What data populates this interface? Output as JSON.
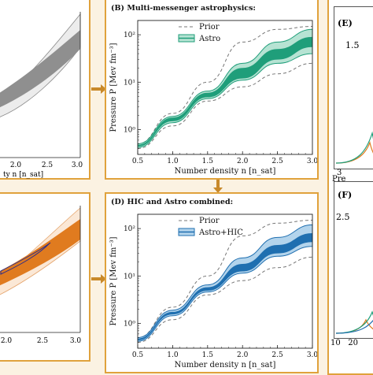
{
  "colors": {
    "background": "#fbf2e2",
    "panel_border": "#e0a23c",
    "arrow": "#c8892a",
    "astro_teal": "#1f9e7a",
    "astro_teal_light": "#b6e3d3",
    "astrohic_blue": "#1f6fb0",
    "astrohic_blue_light": "#b3d4ec",
    "hic_orange": "#e07b1f",
    "hic_orange_light": "#f6d2ad",
    "prior_gray": "#777777",
    "prior_fill": "#e9e9e9",
    "prior_dark": "#8a8a8a"
  },
  "panels": {
    "A": {
      "xtick_labels": [
        "2.0",
        "2.5",
        "3.0"
      ],
      "xlabel_fragment": "ty n [n_sat]"
    },
    "B": {
      "title": "(B) Multi-messenger astrophysics:",
      "legend": [
        "Prior",
        "Astro"
      ],
      "ylabel": "Pressure P [Mev fm⁻³]",
      "xlabel": "Number density n [n_sat]"
    },
    "C": {
      "xtick_labels": [
        "2.0",
        "2.5",
        "3.0"
      ]
    },
    "D": {
      "title": "(D) HIC and Astro combined:",
      "legend": [
        "Prior",
        "Astro+HIC"
      ],
      "ylabel": "Pressure P [Mev fm⁻³]",
      "xlabel": "Number density n [n_sat]"
    },
    "E": {
      "title": "(E)",
      "label_fragment": "1.5",
      "xtick_fragment": "3",
      "xlabel_fragment": "Pre"
    },
    "F": {
      "title": "(F)",
      "label_fragment": "2.5",
      "xtick_fragment": "10   20"
    }
  },
  "chart_data": [
    {
      "panel": "B",
      "type": "area",
      "title": "(B) Multi-messenger astrophysics:",
      "xlabel": "Number density n [n_sat]",
      "ylabel": "Pressure P [Mev fm⁻³]",
      "yscale": "log",
      "xlim": [
        0.5,
        3.0
      ],
      "ylim": [
        0.3,
        200
      ],
      "x_ticks": [
        "0.5",
        "1.0",
        "1.5",
        "2.0",
        "2.5",
        "3.0"
      ],
      "y_ticks": [
        "10⁰",
        "10¹",
        "10²"
      ],
      "legend": [
        "Prior",
        "Astro"
      ],
      "legend_position": "top-right",
      "x": [
        0.5,
        1.0,
        1.5,
        2.0,
        2.5,
        3.0
      ],
      "series": [
        {
          "name": "Prior",
          "upper": [
            0.5,
            2.2,
            10.0,
            70.0,
            130.0,
            150.0
          ],
          "lower": [
            0.4,
            1.2,
            4.0,
            8.0,
            15.0,
            25.0
          ]
        },
        {
          "name": "Astro",
          "upper_outer": [
            0.5,
            1.9,
            6.5,
            25.0,
            70.0,
            130.0
          ],
          "lower_outer": [
            0.42,
            1.4,
            4.5,
            11.0,
            25.0,
            40.0
          ],
          "upper_inner": [
            0.48,
            1.8,
            6.0,
            20.0,
            50.0,
            90.0
          ],
          "lower_inner": [
            0.44,
            1.5,
            4.8,
            12.0,
            30.0,
            55.0
          ]
        }
      ]
    },
    {
      "panel": "D",
      "type": "area",
      "title": "(D) HIC and Astro combined:",
      "xlabel": "Number density n [n_sat]",
      "ylabel": "Pressure P [Mev fm⁻³]",
      "yscale": "log",
      "xlim": [
        0.5,
        3.0
      ],
      "ylim": [
        0.3,
        200
      ],
      "x_ticks": [
        "0.5",
        "1.0",
        "1.5",
        "2.0",
        "2.5",
        "3.0"
      ],
      "y_ticks": [
        "10⁰",
        "10¹",
        "10²"
      ],
      "legend": [
        "Prior",
        "Astro+HIC"
      ],
      "legend_position": "top-right",
      "x": [
        0.5,
        1.0,
        1.5,
        2.0,
        2.5,
        3.0
      ],
      "series": [
        {
          "name": "Prior",
          "upper": [
            0.5,
            2.2,
            10.0,
            70.0,
            130.0,
            150.0
          ],
          "lower": [
            0.4,
            1.2,
            4.0,
            8.0,
            15.0,
            25.0
          ]
        },
        {
          "name": "Astro+HIC",
          "upper_outer": [
            0.5,
            1.9,
            6.5,
            24.0,
            65.0,
            120.0
          ],
          "lower_outer": [
            0.42,
            1.45,
            4.6,
            11.5,
            26.0,
            42.0
          ],
          "upper_inner": [
            0.48,
            1.75,
            5.8,
            18.0,
            45.0,
            80.0
          ],
          "lower_inner": [
            0.44,
            1.55,
            4.9,
            12.5,
            30.0,
            52.0
          ]
        }
      ]
    }
  ]
}
